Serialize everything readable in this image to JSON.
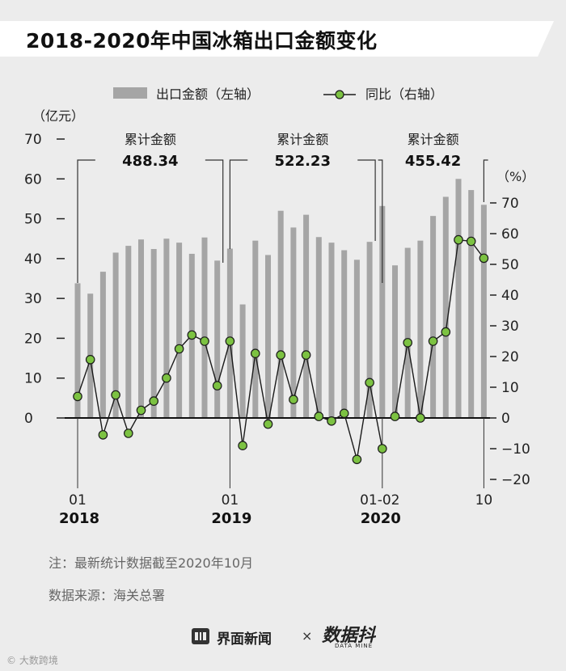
{
  "chart_data": {
    "type": "bar+line",
    "title": "2018-2020年中国冰箱出口金额变化",
    "left_axis": {
      "unit": "（亿元）",
      "ylim": [
        0,
        70
      ],
      "ticks": [
        0,
        10,
        20,
        30,
        40,
        50,
        60,
        70
      ]
    },
    "right_axis": {
      "unit": "（%）",
      "ylim": [
        -20,
        70
      ],
      "ticks": [
        -20,
        -10,
        0,
        10,
        20,
        30,
        40,
        50,
        60,
        70
      ]
    },
    "legend": {
      "bar": "出口金额（左轴）",
      "line": "同比（右轴）"
    },
    "x_labels": [
      "01",
      "01",
      "01-02",
      "10"
    ],
    "year_labels": [
      "2018",
      "2019",
      "2020"
    ],
    "annotations": [
      {
        "label": "累计金额",
        "value": "488.34"
      },
      {
        "label": "累计金额",
        "value": "522.23"
      },
      {
        "label": "累计金额",
        "value": "455.42"
      }
    ],
    "series": [
      {
        "name": "出口金额（左轴）",
        "type": "bar",
        "values": [
          33.8,
          31.2,
          36.7,
          41.5,
          43.2,
          44.8,
          42.4,
          45.0,
          44.0,
          41.2,
          45.3,
          39.5,
          42.5,
          28.5,
          44.5,
          40.9,
          52.0,
          47.8,
          51.0,
          45.4,
          44.0,
          42.1,
          39.7,
          44.2,
          53.2,
          38.3,
          42.7,
          44.5,
          50.7,
          55.5,
          60.0,
          57.2,
          53.5
        ]
      },
      {
        "name": "同比（右轴）",
        "type": "line",
        "gaps_after_index": [
          24
        ],
        "values": [
          7,
          19,
          -5.5,
          7.5,
          -5,
          2.5,
          5.5,
          13,
          22.5,
          27,
          25,
          10.5,
          25,
          -9,
          21,
          -2,
          20.5,
          6,
          20.5,
          0.5,
          -1,
          1.5,
          -13.5,
          11.5,
          -10,
          0.5,
          24.5,
          0,
          25,
          28,
          58,
          57.5,
          52
        ]
      }
    ]
  },
  "notes": {
    "note": "注：最新统计数据截至2020年10月",
    "source": "数据来源：海关总署"
  },
  "footer": {
    "brand": "界面新闻",
    "separator": "×",
    "partner": "数据抖",
    "partner_sub": "DATA MINE",
    "watermark": "© 大数跨境"
  },
  "colors": {
    "bar": "#a5a5a5",
    "line": "#1a1a1a",
    "marker": "#7cc242",
    "title_band": "#ffffff"
  }
}
